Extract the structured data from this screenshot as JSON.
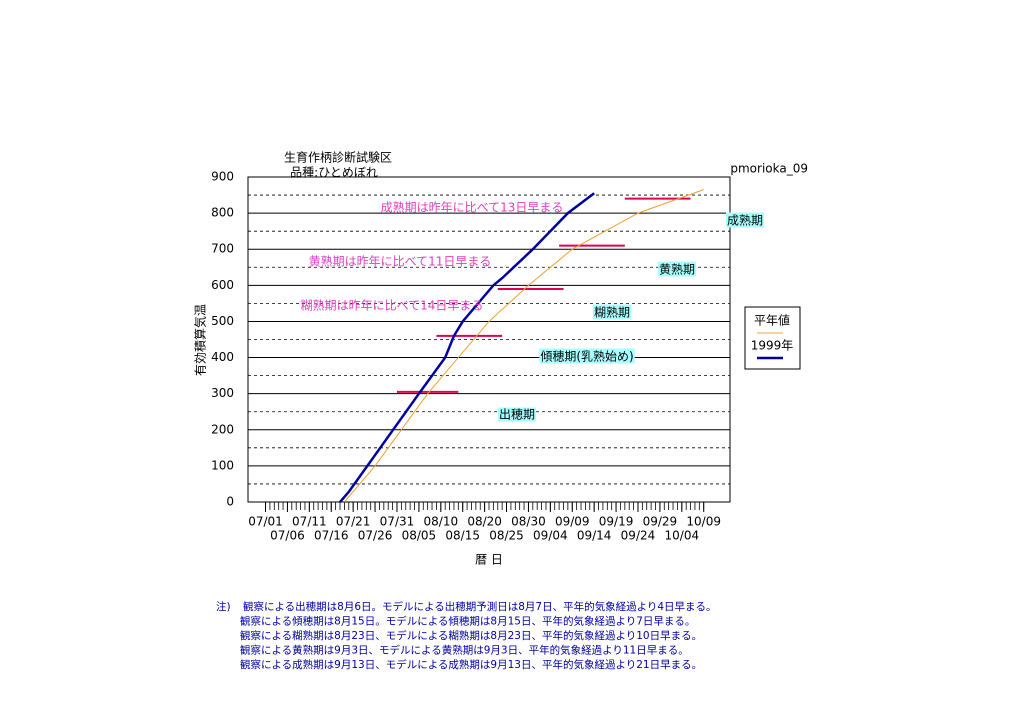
{
  "chart_data": {
    "type": "line",
    "title": "生育作柄診断試験区",
    "subtitle": "品種:ひとめぼれ",
    "corner_label": "pmorioka_09",
    "y_label": "有効積算気温",
    "x_label": "暦 日",
    "xlim": [
      "06/27",
      "10/15"
    ],
    "xticks": [
      "07/01",
      "07/06",
      "07/11",
      "07/16",
      "07/21",
      "07/26",
      "07/31",
      "08/05",
      "08/10",
      "08/15",
      "08/20",
      "08/25",
      "08/30",
      "09/04",
      "09/09",
      "09/14",
      "09/19",
      "09/24",
      "09/29",
      "10/04",
      "10/09"
    ],
    "ylim": [
      0,
      900
    ],
    "yticks": [
      0,
      100,
      200,
      300,
      400,
      500,
      600,
      700,
      800,
      900
    ],
    "yminor": [
      50,
      150,
      250,
      350,
      450,
      550,
      650,
      750,
      850
    ],
    "grid": true,
    "legend": "right",
    "series": [
      {
        "name": "平年値",
        "color": "#f0a030",
        "x": [
          "07/19",
          "07/26",
          "08/01",
          "08/07",
          "08/14",
          "08/21",
          "08/30",
          "09/09",
          "09/24",
          "10/09"
        ],
        "values": [
          0,
          100,
          200,
          300,
          400,
          500,
          600,
          700,
          800,
          865
        ]
      },
      {
        "name": "1999年",
        "color": "#0000a0",
        "x": [
          "07/18",
          "07/20",
          "08/05",
          "08/11",
          "08/13",
          "08/15",
          "08/22",
          "08/24",
          "08/31",
          "09/08",
          "09/14"
        ],
        "values": [
          0,
          28,
          300,
          400,
          460,
          500,
          600,
          620,
          700,
          800,
          855
        ]
      }
    ],
    "stage_lines": {
      "color": "#e0004f",
      "items": [
        {
          "value": 305,
          "x": [
            "07/31",
            "08/14"
          ]
        },
        {
          "value": 460,
          "x": [
            "08/09",
            "08/24"
          ]
        },
        {
          "value": 590,
          "x": [
            "08/23",
            "09/07"
          ]
        },
        {
          "value": 710,
          "x": [
            "09/06",
            "09/21"
          ]
        },
        {
          "value": 840,
          "x": [
            "09/21",
            "10/06"
          ]
        }
      ]
    },
    "stage_labels": [
      "成熟期",
      "黄熟期",
      "糊熟期",
      "傾穂期(乳熟始め)",
      "出穂期"
    ],
    "annotations": [
      "成熟期は昨年に比べて13日早まる",
      "黄熟期は昨年に比べて11日早まる",
      "糊熟期は昨年に比べて14日早まる"
    ],
    "notes": {
      "prefix": "注)",
      "lines": [
        "観察による出穂期は8月6日。モデルによる出穂期予測日は8月7日、平年的気象経過より4日早まる。",
        "観察による傾穂期は8月15日。モデルによる傾穂期は8月15日、平年的気象経過より7日早まる。",
        "観察による糊熟期は8月23日、モデルによる糊熟期は8月23日、平年的気象経過より10日早まる。",
        "観察による黄熟期は9月3日、モデルによる黄熟期は9月3日、平年的気象経過より11日早まる。",
        "観察による成熟期は9月13日、モデルによる成熟期は9月13日、平年的気象経過より21日早まる。"
      ]
    }
  }
}
